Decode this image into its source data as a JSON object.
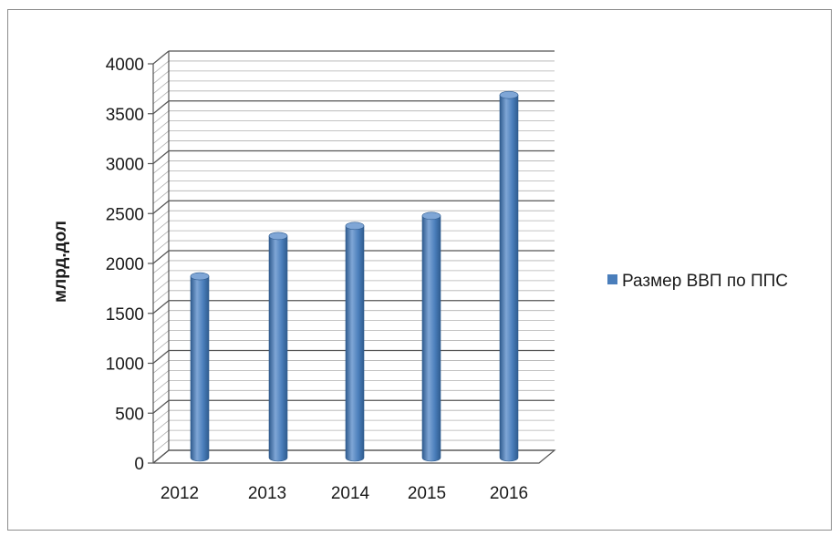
{
  "chart_data": {
    "type": "bar",
    "style": "3d-cylinder",
    "categories": [
      "2012",
      "2013",
      "2014",
      "2015",
      "2016"
    ],
    "series": [
      {
        "name": "Размер ВВП по ППС",
        "values": [
          1800,
          2200,
          2300,
          2400,
          3600
        ]
      }
    ],
    "ylabel": "млрд.дол",
    "xlabel": "",
    "ylim": [
      0,
      4000
    ],
    "yticks": [
      0,
      500,
      1000,
      1500,
      2000,
      2500,
      3000,
      3500,
      4000
    ],
    "grid": true,
    "legend_position": "right",
    "colors": {
      "bar": "#4a7ebb",
      "bar_dark": "#2f5b8e",
      "bar_light": "#7fa6d6",
      "grid_major": "#555555",
      "grid_minor": "#b0b0b0"
    }
  }
}
